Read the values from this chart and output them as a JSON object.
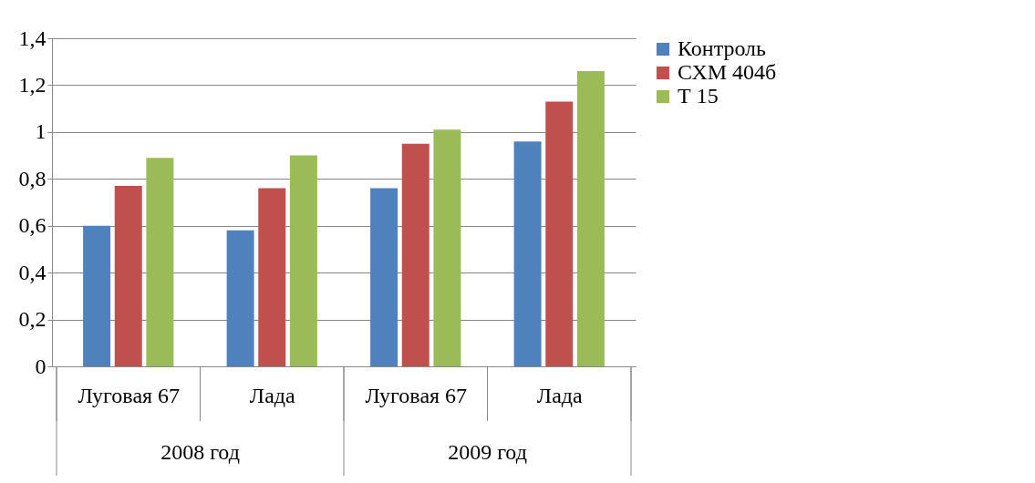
{
  "chart_data": {
    "type": "bar",
    "categories": [
      "Луговая 67",
      "Лада",
      "Луговая 67",
      "Лада"
    ],
    "annotations": [
      "2008 год",
      "2009 год"
    ],
    "series": [
      {
        "name": "Контроль",
        "color": "#4f81bd",
        "values": [
          0.6,
          0.58,
          0.76,
          0.96
        ]
      },
      {
        "name": "СХМ 404б",
        "color": "#c0504d",
        "values": [
          0.77,
          0.76,
          0.95,
          1.13
        ]
      },
      {
        "name": "Т 15",
        "color": "#9bbb59",
        "values": [
          0.89,
          0.9,
          1.01,
          1.26
        ]
      }
    ],
    "ylim": [
      0,
      1.4
    ],
    "yticks": [
      {
        "value": 0,
        "label": "0"
      },
      {
        "value": 0.2,
        "label": "0,2"
      },
      {
        "value": 0.4,
        "label": "0,4"
      },
      {
        "value": 0.6,
        "label": "0,6"
      },
      {
        "value": 0.8,
        "label": "0,8"
      },
      {
        "value": 1,
        "label": "1"
      },
      {
        "value": 1.2,
        "label": "1,2"
      },
      {
        "value": 1.4,
        "label": "1,4"
      }
    ],
    "grid": "y",
    "legend": "right"
  }
}
